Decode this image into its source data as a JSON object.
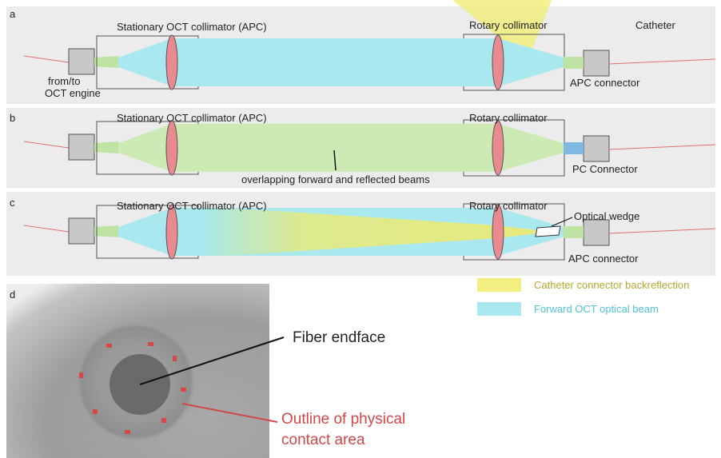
{
  "panels": [
    {
      "label": "a",
      "collimator": "Stationary OCT collimator (APC)",
      "rotary": "Rotary collimator",
      "catheter": "Catheter",
      "engine": [
        "from/to",
        "OCT engine"
      ],
      "connector": "APC connector"
    },
    {
      "label": "b",
      "collimator": "Stationary OCT collimator (APC)",
      "rotary": "Rotary collimator",
      "annotation": "overlapping forward and reflected beams",
      "connector": "PC Connector"
    },
    {
      "label": "c",
      "collimator": "Stationary OCT collimator (APC)",
      "rotary": "Rotary collimator",
      "wedge": "Optical wedge",
      "connector": "APC connector"
    }
  ],
  "legend": [
    "Catheter connector backreflection",
    "Forward OCT optical beam"
  ],
  "photo": {
    "label": "d",
    "fiber": "Fiber endface",
    "outline": [
      "Outline of physical",
      "contact area"
    ]
  }
}
